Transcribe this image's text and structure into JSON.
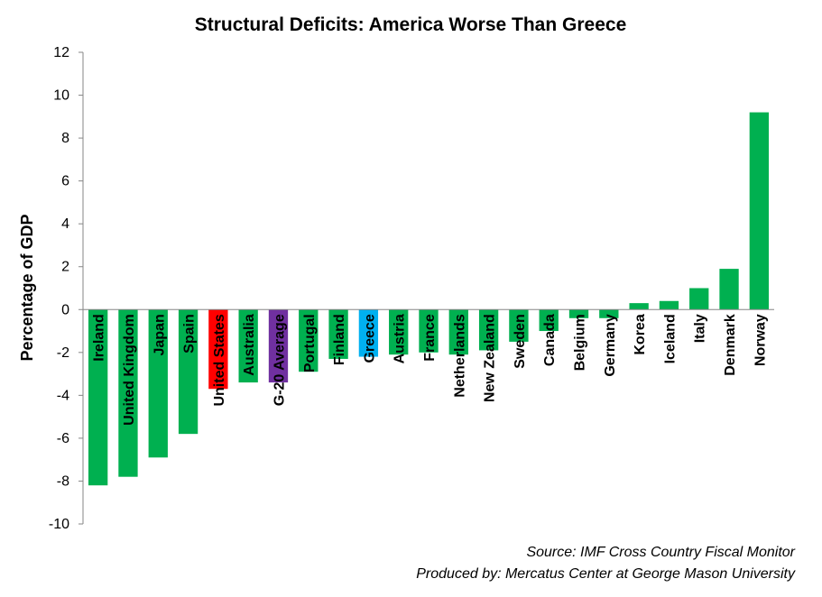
{
  "chart_data": {
    "type": "bar",
    "title": "Structural Deficits: America Worse Than Greece",
    "ylabel": "Percentage of GDP",
    "xlabel": "",
    "ylim": [
      -10,
      12
    ],
    "yticks": [
      12,
      10,
      8,
      6,
      4,
      2,
      0,
      -2,
      -4,
      -6,
      -8,
      -10
    ],
    "grid": false,
    "categories": [
      "Ireland",
      "United Kingdom",
      "Japan",
      "Spain",
      "United States",
      "Australia",
      "G-20 Average",
      "Portugal",
      "Finland",
      "Greece",
      "Austria",
      "France",
      "Netherlands",
      "New Zealand",
      "Sweden",
      "Canada",
      "Belgium",
      "Germany",
      "Korea",
      "Iceland",
      "Italy",
      "Denmark",
      "Norway"
    ],
    "values": [
      -8.2,
      -7.8,
      -6.9,
      -5.8,
      -3.7,
      -3.4,
      -3.4,
      -2.9,
      -2.3,
      -2.2,
      -2.1,
      -2.0,
      -2.1,
      -1.9,
      -1.5,
      -1.0,
      -0.4,
      -0.4,
      0.3,
      0.4,
      1.0,
      1.9,
      9.2
    ],
    "colors": [
      "#00B050",
      "#00B050",
      "#00B050",
      "#00B050",
      "#FF0000",
      "#00B050",
      "#7030A0",
      "#00B050",
      "#00B050",
      "#00B0F0",
      "#00B050",
      "#00B050",
      "#00B050",
      "#00B050",
      "#00B050",
      "#00B050",
      "#00B050",
      "#00B050",
      "#00B050",
      "#00B050",
      "#00B050",
      "#00B050",
      "#00B050"
    ]
  },
  "notes": {
    "source": "Source:  IMF Cross Country Fiscal Monitor",
    "produced_by": "Produced by: Mercatus Center at George Mason University"
  }
}
